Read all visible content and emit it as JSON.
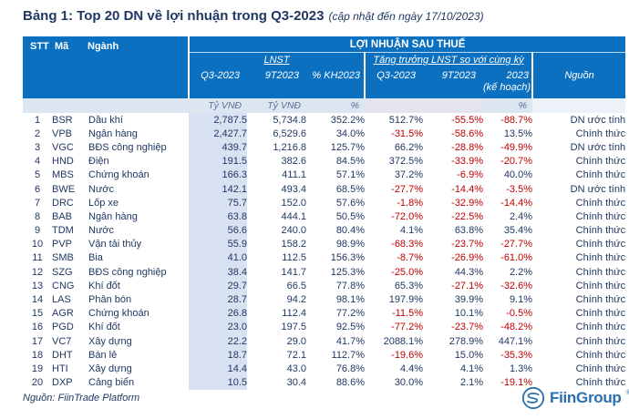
{
  "title": {
    "main": "Bảng 1: Top 20 DN về lợi nhuận trong Q3-2023",
    "note": "(cập nhật đến ngày 17/10/2023)"
  },
  "table": {
    "left_header": {
      "stt": "STT",
      "ma": "Mã",
      "nganh": "Ngành"
    },
    "group_header": "LỢI NHUẬN SAU THUẾ",
    "subgroups": {
      "lnst": "LNST",
      "growth": "Tăng trưởng LNST so với cùng kỳ"
    },
    "columns": {
      "lnst_q3": "Q3-2023",
      "lnst_9t": "9T2023",
      "lnst_kh": "% KH2023",
      "g_q3": "Q3-2023",
      "g_9t": "9T2023",
      "g_2023": "2023",
      "g_2023_sub": "(kế hoạch)",
      "nguon": "Nguồn"
    },
    "units": {
      "lnst_q3": "Tỷ VNĐ",
      "lnst_9t": "Tỷ VNĐ",
      "lnst_kh": "%",
      "g_2023": "%"
    },
    "rows": [
      {
        "stt": "1",
        "ma": "BSR",
        "nganh": "Dầu khí",
        "lnst_q3": "2,787.5",
        "lnst_9t": "5,734.8",
        "lnst_kh": "352.2%",
        "g_q3": "512.7%",
        "g_9t": "-55.5%",
        "g_2023": "-88.7%",
        "nguon": "DN ước tính"
      },
      {
        "stt": "2",
        "ma": "VPB",
        "nganh": "Ngân hàng",
        "lnst_q3": "2,427.7",
        "lnst_9t": "6,529.6",
        "lnst_kh": "34.0%",
        "g_q3": "-31.5%",
        "g_9t": "-58.6%",
        "g_2023": "13.5%",
        "nguon": "Chính thức"
      },
      {
        "stt": "3",
        "ma": "VGC",
        "nganh": "BĐS công nghiệp",
        "lnst_q3": "439.7",
        "lnst_9t": "1,216.8",
        "lnst_kh": "125.7%",
        "g_q3": "66.2%",
        "g_9t": "-28.8%",
        "g_2023": "-49.9%",
        "nguon": "DN ước tính"
      },
      {
        "stt": "4",
        "ma": "HND",
        "nganh": "Điện",
        "lnst_q3": "191.5",
        "lnst_9t": "382.6",
        "lnst_kh": "84.5%",
        "g_q3": "372.5%",
        "g_9t": "-33.9%",
        "g_2023": "-20.7%",
        "nguon": "Chính thức"
      },
      {
        "stt": "5",
        "ma": "MBS",
        "nganh": "Chứng khoán",
        "lnst_q3": "166.3",
        "lnst_9t": "411.1",
        "lnst_kh": "57.1%",
        "g_q3": "37.2%",
        "g_9t": "-6.9%",
        "g_2023": "40.0%",
        "nguon": "Chính thức"
      },
      {
        "stt": "6",
        "ma": "BWE",
        "nganh": "Nước",
        "lnst_q3": "142.1",
        "lnst_9t": "493.4",
        "lnst_kh": "68.5%",
        "g_q3": "-27.7%",
        "g_9t": "-14.4%",
        "g_2023": "-3.5%",
        "nguon": "DN ước tính"
      },
      {
        "stt": "7",
        "ma": "DRC",
        "nganh": "Lốp xe",
        "lnst_q3": "75.7",
        "lnst_9t": "152.0",
        "lnst_kh": "57.6%",
        "g_q3": "-1.8%",
        "g_9t": "-32.9%",
        "g_2023": "-14.4%",
        "nguon": "Chính thức"
      },
      {
        "stt": "8",
        "ma": "BAB",
        "nganh": "Ngân hàng",
        "lnst_q3": "63.8",
        "lnst_9t": "444.1",
        "lnst_kh": "50.5%",
        "g_q3": "-72.0%",
        "g_9t": "-22.5%",
        "g_2023": "2.4%",
        "nguon": "Chính thức"
      },
      {
        "stt": "9",
        "ma": "TDM",
        "nganh": "Nước",
        "lnst_q3": "56.6",
        "lnst_9t": "240.0",
        "lnst_kh": "80.4%",
        "g_q3": "4.1%",
        "g_9t": "63.8%",
        "g_2023": "35.4%",
        "nguon": "Chính thức"
      },
      {
        "stt": "10",
        "ma": "PVP",
        "nganh": "Vận tải thủy",
        "lnst_q3": "55.9",
        "lnst_9t": "158.2",
        "lnst_kh": "98.9%",
        "g_q3": "-68.3%",
        "g_9t": "-23.7%",
        "g_2023": "-27.7%",
        "nguon": "Chính thức"
      },
      {
        "stt": "11",
        "ma": "SMB",
        "nganh": "Bia",
        "lnst_q3": "41.0",
        "lnst_9t": "112.5",
        "lnst_kh": "156.3%",
        "g_q3": "-8.7%",
        "g_9t": "-26.9%",
        "g_2023": "-61.0%",
        "nguon": "Chính thức"
      },
      {
        "stt": "12",
        "ma": "SZG",
        "nganh": "BĐS công nghiệp",
        "lnst_q3": "38.4",
        "lnst_9t": "141.7",
        "lnst_kh": "125.3%",
        "g_q3": "-25.0%",
        "g_9t": "44.3%",
        "g_2023": "2.2%",
        "nguon": "Chính thức"
      },
      {
        "stt": "13",
        "ma": "CNG",
        "nganh": "Khí đốt",
        "lnst_q3": "29.7",
        "lnst_9t": "66.5",
        "lnst_kh": "77.8%",
        "g_q3": "65.3%",
        "g_9t": "-27.1%",
        "g_2023": "-32.6%",
        "nguon": "Chính thức"
      },
      {
        "stt": "14",
        "ma": "LAS",
        "nganh": "Phân bón",
        "lnst_q3": "28.7",
        "lnst_9t": "94.2",
        "lnst_kh": "98.1%",
        "g_q3": "197.9%",
        "g_9t": "39.9%",
        "g_2023": "9.1%",
        "nguon": "Chính thức"
      },
      {
        "stt": "15",
        "ma": "AGR",
        "nganh": "Chứng khoán",
        "lnst_q3": "26.8",
        "lnst_9t": "112.4",
        "lnst_kh": "77.2%",
        "g_q3": "-11.5%",
        "g_9t": "10.1%",
        "g_2023": "-0.5%",
        "nguon": "Chính thức"
      },
      {
        "stt": "16",
        "ma": "PGD",
        "nganh": "Khí đốt",
        "lnst_q3": "23.0",
        "lnst_9t": "197.5",
        "lnst_kh": "92.5%",
        "g_q3": "-77.2%",
        "g_9t": "-23.7%",
        "g_2023": "-48.2%",
        "nguon": "Chính thức"
      },
      {
        "stt": "17",
        "ma": "VC7",
        "nganh": "Xây dựng",
        "lnst_q3": "22.2",
        "lnst_9t": "29.0",
        "lnst_kh": "41.7%",
        "g_q3": "2088.1%",
        "g_9t": "278.9%",
        "g_2023": "447.1%",
        "nguon": "Chính thức"
      },
      {
        "stt": "18",
        "ma": "DHT",
        "nganh": "Bán lẻ",
        "lnst_q3": "18.7",
        "lnst_9t": "72.1",
        "lnst_kh": "112.7%",
        "g_q3": "-19.6%",
        "g_9t": "15.0%",
        "g_2023": "-35.3%",
        "nguon": "Chính thức"
      },
      {
        "stt": "19",
        "ma": "HTI",
        "nganh": "Xây dựng",
        "lnst_q3": "14.4",
        "lnst_9t": "43.0",
        "lnst_kh": "76.8%",
        "g_q3": "4.4%",
        "g_9t": "4.1%",
        "g_2023": "1.3%",
        "nguon": "Chính thức"
      },
      {
        "stt": "20",
        "ma": "DXP",
        "nganh": "Cảng biển",
        "lnst_q3": "10.5",
        "lnst_9t": "30.4",
        "lnst_kh": "88.6%",
        "g_q3": "30.0%",
        "g_9t": "2.1%",
        "g_2023": "-19.1%",
        "nguon": "Chính thức"
      }
    ]
  },
  "footer": {
    "source": "Nguồn: FiinTrade Platform",
    "logo_text": "FiinGroup",
    "logo_mark": "®"
  },
  "colors": {
    "header_blue": "#0c70c0",
    "navy_text": "#203864",
    "negative_red": "#c00000",
    "column_band": "#d9e2f2",
    "units_bg": "#dce6f1",
    "units_lavender": "#e3e4ee",
    "logo_blue": "#2a6fad"
  }
}
